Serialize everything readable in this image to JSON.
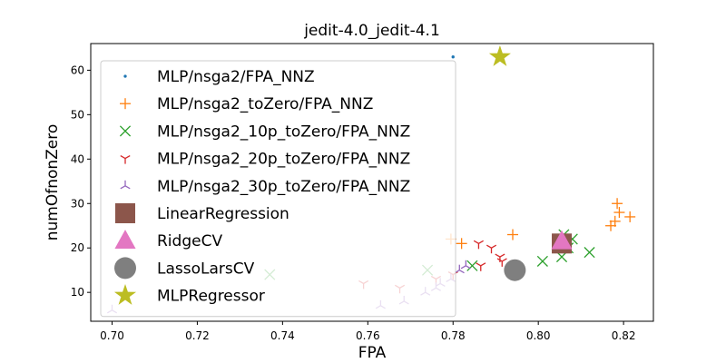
{
  "chart_data": {
    "type": "scatter",
    "title": "jedit-4.0_jedit-4.1",
    "xlabel": "FPA",
    "ylabel": "numOfnonZero",
    "xlim": [
      0.695,
      0.827
    ],
    "ylim": [
      3.5,
      66
    ],
    "xticks": [
      "0.70",
      "0.72",
      "0.74",
      "0.76",
      "0.78",
      "0.80",
      "0.82"
    ],
    "xtick_values": [
      0.7,
      0.72,
      0.74,
      0.76,
      0.78,
      0.8,
      0.82
    ],
    "yticks": [
      "10",
      "20",
      "30",
      "40",
      "50",
      "60"
    ],
    "ytick_values": [
      10,
      20,
      30,
      40,
      50,
      60
    ],
    "grid": false,
    "legend_position": "top-left",
    "series": [
      {
        "name": "MLP/nsga2/FPA_NNZ",
        "marker": "dot",
        "color": "#1f77b4",
        "points": [
          [
            0.78,
            63
          ]
        ]
      },
      {
        "name": "MLP/nsga2_toZero/FPA_NNZ",
        "marker": "plus",
        "color": "#ff7f0e",
        "points": [
          [
            0.7795,
            22
          ],
          [
            0.782,
            21
          ],
          [
            0.794,
            23
          ],
          [
            0.805,
            21
          ],
          [
            0.817,
            25
          ],
          [
            0.818,
            26
          ],
          [
            0.8185,
            30
          ],
          [
            0.819,
            28
          ],
          [
            0.8215,
            27
          ]
        ]
      },
      {
        "name": "MLP/nsga2_10p_toZero/FPA_NNZ",
        "marker": "x",
        "color": "#2ca02c",
        "points": [
          [
            0.737,
            14
          ],
          [
            0.774,
            15
          ],
          [
            0.7845,
            16
          ],
          [
            0.801,
            17
          ],
          [
            0.8055,
            18
          ],
          [
            0.806,
            23
          ],
          [
            0.807,
            20
          ],
          [
            0.808,
            22
          ],
          [
            0.812,
            19
          ]
        ]
      },
      {
        "name": "MLP/nsga2_20p_toZero/FPA_NNZ",
        "marker": "tri_down",
        "color": "#d62728",
        "points": [
          [
            0.759,
            12
          ],
          [
            0.7675,
            11
          ],
          [
            0.776,
            13
          ],
          [
            0.78,
            14
          ],
          [
            0.7865,
            16
          ],
          [
            0.786,
            21
          ],
          [
            0.789,
            20
          ],
          [
            0.791,
            18
          ],
          [
            0.7915,
            17
          ]
        ]
      },
      {
        "name": "MLP/nsga2_30p_toZero/FPA_NNZ",
        "marker": "tri_up",
        "color": "#9467bd",
        "points": [
          [
            0.7,
            6
          ],
          [
            0.763,
            7
          ],
          [
            0.7685,
            8
          ],
          [
            0.7735,
            10
          ],
          [
            0.776,
            11
          ],
          [
            0.777,
            12
          ],
          [
            0.7795,
            13
          ],
          [
            0.7815,
            15
          ],
          [
            0.783,
            16
          ]
        ]
      },
      {
        "name": "LinearRegression",
        "marker": "square",
        "color": "#8c564b",
        "points": [
          [
            0.8055,
            21
          ]
        ]
      },
      {
        "name": "RidgeCV",
        "marker": "triangle",
        "color": "#e377c2",
        "points": [
          [
            0.8055,
            21.5
          ]
        ]
      },
      {
        "name": "LassoLarsCV",
        "marker": "circle",
        "color": "#7f7f7f",
        "points": [
          [
            0.7945,
            15
          ]
        ]
      },
      {
        "name": "MLPRegressor",
        "marker": "star",
        "color": "#bcbd22",
        "points": [
          [
            0.791,
            63
          ]
        ]
      }
    ]
  }
}
